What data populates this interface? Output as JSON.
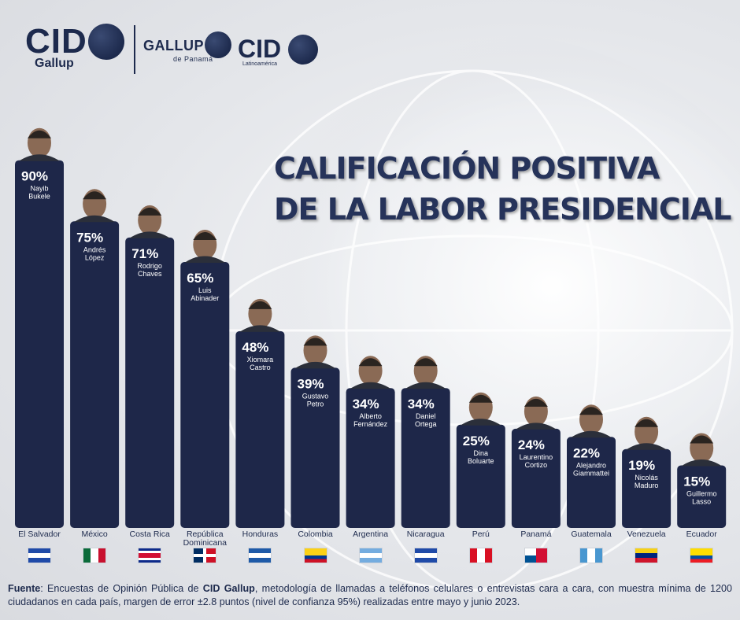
{
  "logos": {
    "cid_main": "CID",
    "cid_sub": "Gallup",
    "gallup": "GALLUP",
    "gallup_sub": "de Panamá",
    "cid2": "CID",
    "cid2_sub": "Latinoamérica"
  },
  "title": {
    "line1": "CALIFICACIÓN POSITIVA",
    "line2": "DE LA LABOR PRESIDENCIAL"
  },
  "colors": {
    "bar": "#1e2749",
    "title": "#26335a",
    "text": "#1d2a4d"
  },
  "chart_data": {
    "type": "bar",
    "title": "CALIFICACIÓN POSITIVA DE LA LABOR PRESIDENCIAL",
    "unit": "%",
    "categories": [
      "El Salvador",
      "México",
      "Costa Rica",
      "República Dominicana",
      "Honduras",
      "Colombia",
      "Argentina",
      "Nicaragua",
      "Perú",
      "Panamá",
      "Guatemala",
      "Venezuela",
      "Ecuador"
    ],
    "presidents": [
      "Nayib Bukele",
      "Andrés López",
      "Rodrigo Chaves",
      "Luis Abinader",
      "Xiomara Castro",
      "Gustavo Petro",
      "Alberto Fernández",
      "Daniel Ortega",
      "Dina Boluarte",
      "Laurentino Cortizo",
      "Alejandro Giammattei",
      "Nicolás Maduro",
      "Guillermo Lasso"
    ],
    "values": [
      90,
      75,
      71,
      65,
      48,
      39,
      34,
      34,
      25,
      24,
      22,
      19,
      15
    ],
    "value_labels": [
      "90%",
      "75%",
      "71%",
      "65%",
      "48%",
      "39%",
      "34%",
      "34%",
      "25%",
      "24%",
      "22%",
      "19%",
      "15%"
    ],
    "ylim": [
      0,
      100
    ],
    "grid": false,
    "legend": "none"
  },
  "footnote": {
    "label": "Fuente",
    "text_a": ": Encuestas de Opinión Pública de ",
    "brand": "CID Gallup",
    "text_b": ", metodología de llamadas a teléfonos celulares o entrevistas cara a cara, con muestra mínima de 1200 ciudadanos en cada país, margen de error ±2.8 puntos (nivel de confianza 95%) realizadas entre mayo y junio 2023."
  }
}
